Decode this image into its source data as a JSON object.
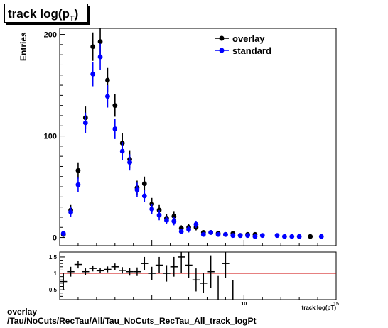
{
  "title": {
    "main": "track log(p",
    "sub": "T",
    "close": ")"
  },
  "footer": {
    "line1": "overlay",
    "line2": "/Tau/NoCuts/RecTau/All/Tau_NoCuts_RecTau_All_track_logPt"
  },
  "colors": {
    "overlay": "#000000",
    "standard": "#0000ff",
    "ratio_line": "#cc0000"
  },
  "chart_data": [
    {
      "type": "scatter",
      "title": "track log(pT)",
      "ylabel": "Entries",
      "xlabel": "track log(pT)",
      "xlim": [
        0,
        15
      ],
      "ylim": [
        -8,
        206
      ],
      "yticks": [
        0,
        100,
        200
      ],
      "legend_position": "top-right",
      "series": [
        {
          "name": "overlay",
          "color": "#000000",
          "x": [
            0.2,
            0.6,
            1.0,
            1.4,
            1.8,
            2.2,
            2.6,
            3.0,
            3.4,
            3.8,
            4.2,
            4.6,
            5.0,
            5.4,
            5.8,
            6.2,
            6.6,
            7.0,
            7.4,
            7.8,
            8.2,
            8.6,
            9.0,
            9.4,
            9.8,
            10.2,
            10.6,
            11.0,
            11.4,
            11.8,
            13.6
          ],
          "y": [
            3,
            27,
            66,
            118,
            188,
            193,
            155,
            130,
            93,
            77,
            49,
            53,
            33,
            27,
            19,
            21,
            9,
            10,
            10,
            5,
            5,
            4,
            3,
            4,
            2,
            3,
            3,
            0,
            0,
            0,
            1
          ],
          "err": [
            2,
            5,
            8,
            11,
            14,
            14,
            12,
            11,
            10,
            9,
            7,
            7,
            6,
            5,
            4,
            5,
            3,
            3,
            3,
            2,
            2,
            2,
            2,
            2,
            1.5,
            2,
            2,
            0,
            0,
            0,
            1
          ]
        },
        {
          "name": "standard",
          "color": "#0000ff",
          "x": [
            0.2,
            0.6,
            1.0,
            1.4,
            1.8,
            2.2,
            2.6,
            3.0,
            3.4,
            3.8,
            4.2,
            4.6,
            5.0,
            5.4,
            5.8,
            6.2,
            6.6,
            7.0,
            7.4,
            7.8,
            8.2,
            8.6,
            9.0,
            9.4,
            9.8,
            10.2,
            10.6,
            11.0,
            11.4,
            11.8,
            12.2,
            12.6,
            13.0,
            13.4,
            13.8,
            14.2
          ],
          "y": [
            4,
            25,
            52,
            113,
            161,
            178,
            139,
            107,
            85,
            74,
            47,
            41,
            28,
            22,
            17,
            16,
            6,
            8,
            13,
            3,
            5,
            3,
            3,
            2,
            2,
            2,
            1,
            2,
            0,
            2,
            1,
            1,
            1,
            0,
            0,
            1
          ],
          "err": [
            2,
            5,
            7,
            10,
            12,
            13,
            11,
            10,
            9,
            8,
            7,
            6,
            5,
            5,
            4,
            4,
            2.5,
            3,
            3.5,
            2,
            2,
            2,
            2,
            1.5,
            1.5,
            1.5,
            1,
            1.5,
            0,
            1.5,
            1,
            1,
            1,
            0,
            0,
            1
          ]
        }
      ]
    },
    {
      "type": "scatter",
      "title": "",
      "xlabel": "track log(pT)",
      "ylabel": "",
      "xlim": [
        0,
        15
      ],
      "ylim": [
        0.2,
        1.65
      ],
      "xticks": [
        10,
        15
      ],
      "yticks": [
        0.5,
        1,
        1.5
      ],
      "reference_line": 1,
      "series": [
        {
          "name": "ratio",
          "color": "#000000",
          "x": [
            0.2,
            0.6,
            1.0,
            1.4,
            1.8,
            2.2,
            2.6,
            3.0,
            3.4,
            3.8,
            4.2,
            4.6,
            5.0,
            5.4,
            5.8,
            6.2,
            6.6,
            7.0,
            7.4,
            7.8,
            8.2,
            8.6,
            9.0,
            9.4
          ],
          "y": [
            0.75,
            1.05,
            1.27,
            1.05,
            1.15,
            1.08,
            1.12,
            1.2,
            1.09,
            1.05,
            1.05,
            1.3,
            1.0,
            1.25,
            1.0,
            1.2,
            1.5,
            1.25,
            0.8,
            0.7,
            1.05,
            0.02,
            1.3,
            0.0
          ],
          "err": [
            0.25,
            0.15,
            0.12,
            0.1,
            0.09,
            0.08,
            0.09,
            0.1,
            0.1,
            0.12,
            0.13,
            0.2,
            0.2,
            0.25,
            0.25,
            0.3,
            0.5,
            0.4,
            0.35,
            0.3,
            0.5,
            0.9,
            0.45,
            0.8
          ]
        }
      ]
    }
  ]
}
